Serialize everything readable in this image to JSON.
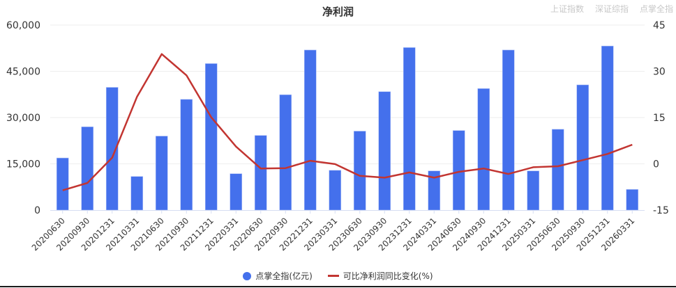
{
  "header": {
    "title": "净利润",
    "tabs": [
      {
        "label": "上证指数"
      },
      {
        "label": "深证综指"
      },
      {
        "label": "点掌全指"
      }
    ]
  },
  "legend": [
    {
      "label": "点掌全指(亿元)",
      "color": "#4470EC",
      "shape": "circle"
    },
    {
      "label": "可比净利润同比变化(%)",
      "color": "#C23531",
      "shape": "line"
    }
  ],
  "chart_data": {
    "type": "bar+line",
    "title": "净利润",
    "categories": [
      "20200630",
      "20200930",
      "20201231",
      "20210331",
      "20210630",
      "20210930",
      "20211231",
      "20220331",
      "20220630",
      "20220930",
      "20221231",
      "20230331",
      "20230630",
      "20230930",
      "20231231",
      "20240331",
      "20240630",
      "20240930",
      "20241231",
      "20250331",
      "20250630",
      "20250930",
      "20251231",
      "20260331"
    ],
    "series": [
      {
        "name": "点掌全指(亿元)",
        "type": "bar",
        "axis": "left",
        "color": "#4470EC",
        "values": [
          16900,
          27000,
          39800,
          10900,
          24000,
          35900,
          47500,
          11800,
          24200,
          37400,
          51900,
          12900,
          25600,
          38400,
          52700,
          12700,
          25800,
          39400,
          51900,
          12700,
          26200,
          40600,
          53200,
          6700
        ]
      },
      {
        "name": "可比净利润同比变化(%)",
        "type": "line",
        "axis": "right",
        "color": "#C23531",
        "values": [
          -8.6,
          -6.2,
          2.0,
          21.7,
          35.6,
          28.7,
          15.1,
          5.6,
          -1.5,
          -1.4,
          1.0,
          -0.1,
          -3.9,
          -4.5,
          -2.8,
          -4.5,
          -2.6,
          -1.5,
          -3.3,
          -1.1,
          -0.8,
          1.2,
          3.2,
          6.2
        ]
      }
    ],
    "y_left": {
      "ticks": [
        0,
        15000,
        30000,
        45000,
        60000
      ],
      "tick_labels": [
        "0",
        "15,000",
        "30,000",
        "45,000",
        "60,000"
      ],
      "ylim": [
        0,
        60000
      ]
    },
    "y_right": {
      "ticks": [
        -15,
        0,
        15,
        30,
        45
      ],
      "tick_labels": [
        "-15",
        "0",
        "15",
        "30",
        "45"
      ],
      "ylim": [
        -15,
        45
      ]
    },
    "xlabel": "",
    "grid": true,
    "legend_position": "bottom"
  }
}
